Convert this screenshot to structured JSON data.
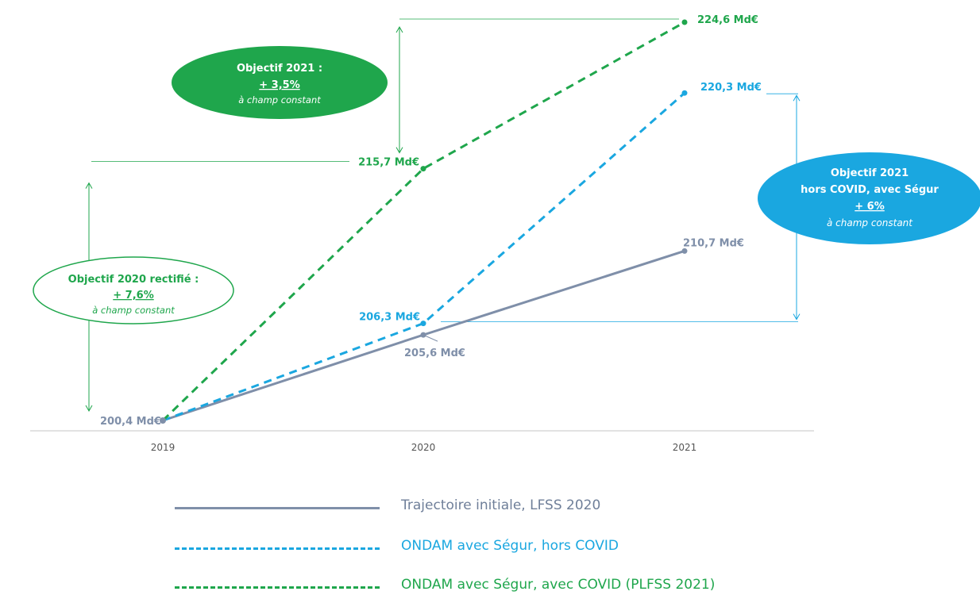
{
  "chart_data": {
    "type": "line",
    "categories": [
      "2019",
      "2020",
      "2021"
    ],
    "ylim": [
      199,
      226
    ],
    "grid": false,
    "legend_placement": "bottom",
    "series": [
      {
        "name": "Trajectoire initiale, LFSS 2020",
        "values": [
          200.4,
          205.6,
          210.7
        ],
        "color": "#7f8fa9",
        "dash": "solid",
        "labels": [
          "200,4 Md€",
          "205,6 Md€",
          "210,7 Md€"
        ]
      },
      {
        "name": "ONDAM avec Ségur, hors COVID",
        "values": [
          200.4,
          206.3,
          220.3
        ],
        "color": "#1aa7e0",
        "dash": "dashed",
        "labels": [
          "",
          "206,3 Md€",
          "220,3 Md€"
        ]
      },
      {
        "name": "ONDAM avec Ségur, avec COVID (PLFSS 2021)",
        "values": [
          200.4,
          215.7,
          224.6
        ],
        "color": "#1fa64c",
        "dash": "dashed",
        "labels": [
          "",
          "215,7 Md€",
          "224,6 Md€"
        ]
      }
    ],
    "annotations": [
      {
        "id": "obj2020",
        "line1": "Objectif 2020 rectifié :",
        "value": "+ 7,6%",
        "line3": "à champ constant",
        "style": "outline",
        "color": "#1fa64c"
      },
      {
        "id": "obj2021",
        "line1": "Objectif 2021 :",
        "value": "+ 3,5%",
        "line3": "à champ constant",
        "style": "filled",
        "color": "#1fa64c"
      },
      {
        "id": "obj2021hc",
        "line1": "Objectif 2021",
        "line2": "hors COVID, avec Ségur",
        "value": "+ 6%",
        "line3": "à champ constant",
        "style": "filled",
        "color": "#1aa7e0"
      }
    ]
  }
}
